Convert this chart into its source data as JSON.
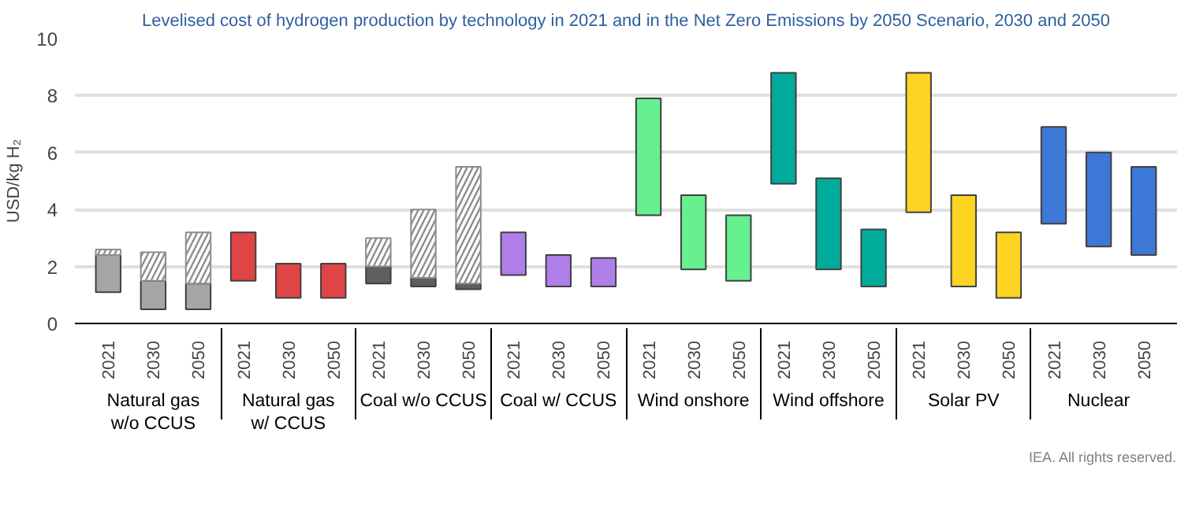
{
  "chart_data": {
    "type": "bar",
    "title": "Levelised cost of hydrogen production by technology in 2021 and in the Net Zero Emissions by 2050 Scenario, 2030 and 2050",
    "ylabel": "USD/kg H₂",
    "categories": [
      "2021",
      "2030",
      "2050",
      "2021",
      "2030",
      "2050",
      "2021",
      "2030",
      "2050",
      "2021",
      "2030",
      "2050",
      "2021",
      "2030",
      "2050",
      "2021",
      "2030",
      "2050",
      "2021",
      "2030",
      "2050",
      "2021",
      "2030",
      "2050"
    ],
    "series": [
      {
        "base": [
          1.1,
          0.5,
          0.5,
          1.5,
          0.9,
          0.9,
          1.4,
          1.3,
          1.2,
          1.7,
          1.3,
          1.3,
          3.8,
          1.9,
          1.5,
          4.9,
          1.9,
          1.3,
          3.9,
          1.3,
          0.9,
          3.5,
          2.7,
          2.4
        ],
        "colors": [
          "#a6a6a6",
          "#a6a6a6",
          "#a6a6a6",
          "#e04545",
          "#e04545",
          "#e04545",
          "#5f5f5f",
          "#5f5f5f",
          "#5f5f5f",
          "#b07ee8",
          "#b07ee8",
          "#b07ee8",
          "#66f08f",
          "#66f08f",
          "#66f08f",
          "#00ab9b",
          "#00ab9b",
          "#00ab9b",
          "#fdd422",
          "#fdd422",
          "#fdd422",
          "#3c78d6",
          "#3c78d6",
          "#3c78d6"
        ],
        "values": [
          1.3,
          1.0,
          0.9,
          1.7,
          1.2,
          1.2,
          0.6,
          0.3,
          0.2,
          1.5,
          1.1,
          1.0,
          4.1,
          2.6,
          2.3,
          3.9,
          3.2,
          2.0,
          4.9,
          3.2,
          2.3,
          3.4,
          3.3,
          3.1
        ]
      },
      {
        "color": "#8c8c8c",
        "base": [
          2.4,
          1.5,
          1.4,
          null,
          null,
          null,
          2.0,
          1.6,
          1.4,
          null,
          null,
          null,
          null,
          null,
          null,
          null,
          null,
          null,
          null,
          null,
          null,
          null,
          null,
          null
        ],
        "values": [
          0.2,
          1.0,
          1.8,
          null,
          null,
          null,
          1.0,
          2.4,
          4.1,
          null,
          null,
          null,
          null,
          null,
          null,
          null,
          null,
          null,
          null,
          null,
          null,
          null,
          null,
          null
        ]
      }
    ],
    "ylim": [
      0,
      10
    ],
    "yticks": [
      0,
      2,
      4,
      6,
      8,
      10
    ],
    "grid": "y",
    "annotations": [
      "Natural gas w/o CCUS",
      "Natural gas w/ CCUS",
      "Coal w/o CCUS",
      "Coal w/ CCUS",
      "Wind onshore",
      "Wind offshore",
      "Solar PV",
      "Nuclear",
      "IEA. All rights reserved."
    ]
  }
}
